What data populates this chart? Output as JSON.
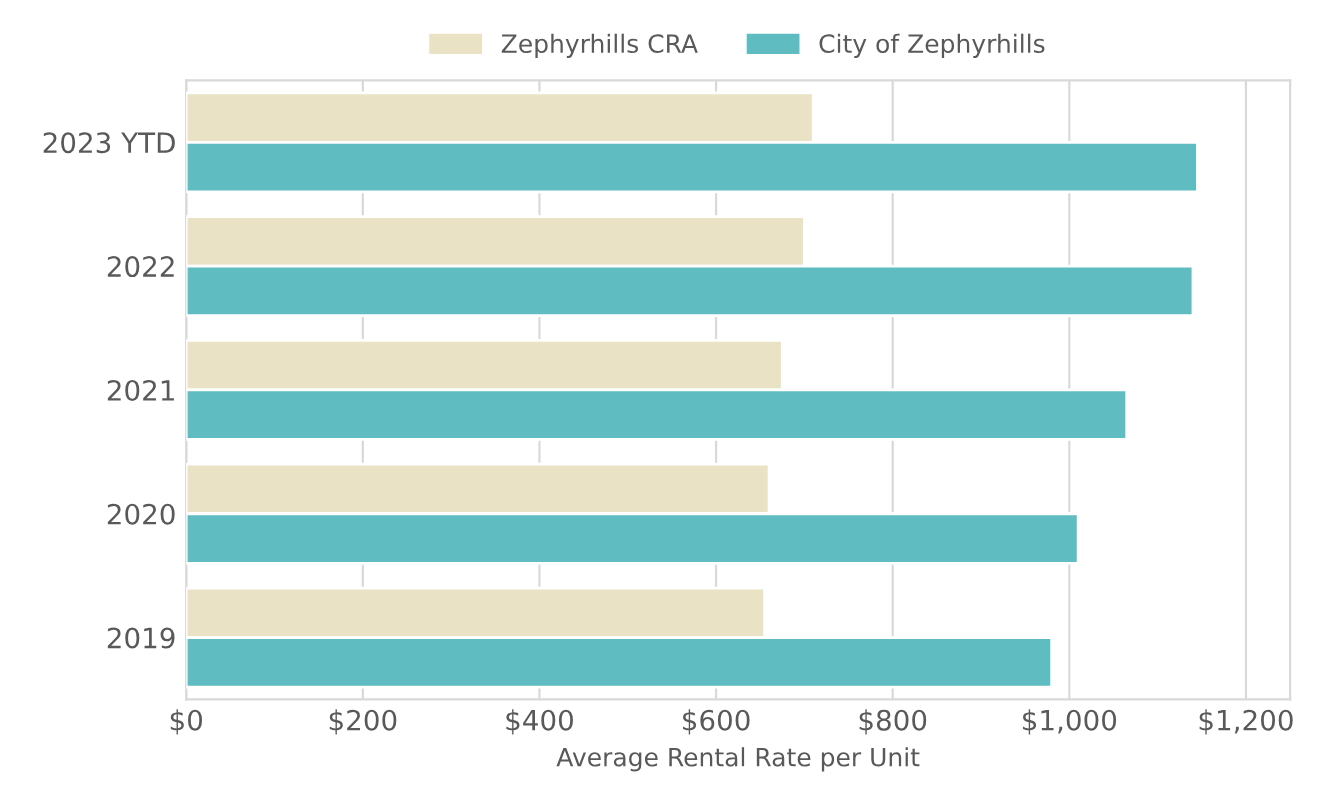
{
  "chart_data": {
    "type": "bar",
    "orientation": "horizontal",
    "categories": [
      "2023 YTD",
      "2022",
      "2021",
      "2020",
      "2019"
    ],
    "series": [
      {
        "name": "Zephyrhills CRA",
        "color": "#e9e2c4",
        "values": [
          710,
          700,
          675,
          660,
          655
        ]
      },
      {
        "name": "City of Zephyrhills",
        "color": "#5fbcc0",
        "values": [
          1145,
          1140,
          1065,
          1010,
          980
        ]
      }
    ],
    "xlabel": "Average Rental Rate per Unit",
    "xlim": [
      0,
      1250
    ],
    "xticks": [
      {
        "value": 0,
        "label": "$0"
      },
      {
        "value": 200,
        "label": "$200"
      },
      {
        "value": 400,
        "label": "$400"
      },
      {
        "value": 600,
        "label": "$600"
      },
      {
        "value": 800,
        "label": "$800"
      },
      {
        "value": 1000,
        "label": "$1,000"
      },
      {
        "value": 1200,
        "label": "$1,200"
      }
    ],
    "grid": "x",
    "legend": "top"
  }
}
